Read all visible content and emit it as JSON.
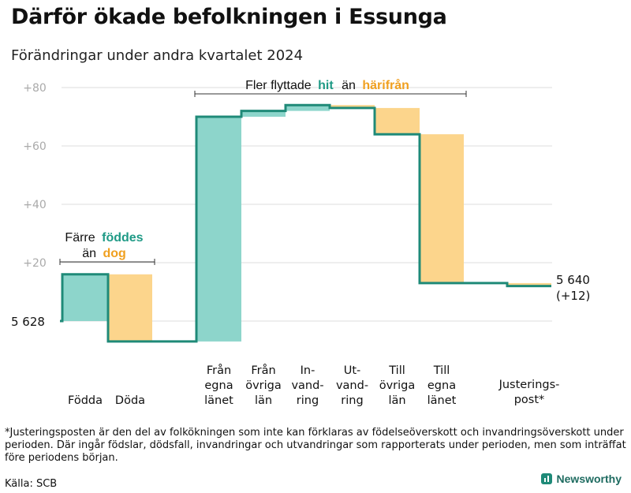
{
  "title": "Därför ökade befolkningen i Essunga",
  "subtitle": "Förändringar under andra kvartalet 2024",
  "footnote": "*Justeringsposten är den del av folkökningen som inte kan förklaras av födelseöverskott och invandringsöverskott under perioden. Där ingår födslar, dödsfall, invandringar och utvandringar som rapporterats under perioden, men som inträffat före periodens början.",
  "source": "Källa: SCB",
  "brand": "Newsworthy",
  "chart_data": {
    "type": "waterfall",
    "title": "Därför ökade befolkningen i Essunga",
    "subtitle": "Förändringar under andra kvartalet 2024",
    "start_value": 5628,
    "start_label": "5  628",
    "end_value": 5640,
    "end_label": "5 640",
    "end_change_label": "(+12)",
    "y_ticks": [
      {
        "value": 20,
        "label": "+20"
      },
      {
        "value": 40,
        "label": "+40"
      },
      {
        "value": 60,
        "label": "+60"
      },
      {
        "value": 80,
        "label": "+80"
      }
    ],
    "ylim": [
      -8,
      82
    ],
    "steps": [
      {
        "label_lines": [
          "Födda"
        ],
        "change": 16
      },
      {
        "label_lines": [
          "Döda"
        ],
        "change": -23
      },
      {
        "label_lines": [
          "Från",
          "egna",
          "länet"
        ],
        "change": 77
      },
      {
        "label_lines": [
          "Från",
          "övriga",
          "län"
        ],
        "change": 2
      },
      {
        "label_lines": [
          "In-",
          "vand-",
          "ring"
        ],
        "change": 2
      },
      {
        "label_lines": [
          "Ut-",
          "vand-",
          "ring"
        ],
        "change": -1
      },
      {
        "label_lines": [
          "Till",
          "övriga",
          "län"
        ],
        "change": -9
      },
      {
        "label_lines": [
          "Till",
          "egna",
          "länet"
        ],
        "change": -51
      },
      {
        "label_lines": [
          "Justerings-",
          "post*"
        ],
        "change": -1
      }
    ],
    "colors": {
      "increase": "#8dd5cb",
      "decrease": "#fcd58c",
      "line": "#1f8a78",
      "highlight_teal": "#1f9a86",
      "highlight_orange": "#f0a020",
      "grid": "#dddddd",
      "tick": "#aaaaaa"
    },
    "annotations": {
      "birth": {
        "prefix": "Färre",
        "highlight": "föddes",
        "line2_prefix": "än",
        "line2_highlight": "dog"
      },
      "migration": {
        "prefix": "Fler flyttade",
        "highlight1": "hit",
        "middle": "än",
        "highlight2": "härifrån"
      }
    }
  }
}
